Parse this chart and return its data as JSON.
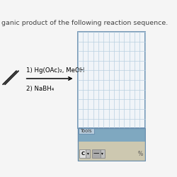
{
  "title_text": "ganic product of the following reaction sequence.",
  "title_fontsize": 6.8,
  "title_color": "#444444",
  "reagent_line1": "1) Hg(OAc)₂, MeOH",
  "reagent_line2": "2) NaBH₄",
  "reagent_fontsize": 6.2,
  "background_color": "#f5f5f5",
  "grid_bg": "#f0f4f8",
  "grid_line_color": "#b8cfe0",
  "grid_border_color": "#6a8faf",
  "tools_blue": "#7fa8c0",
  "tools_tan": "#cdc8b0",
  "tools_tab_bg": "#b8ccdc",
  "n_grid_cols": 13,
  "n_grid_rows": 10
}
